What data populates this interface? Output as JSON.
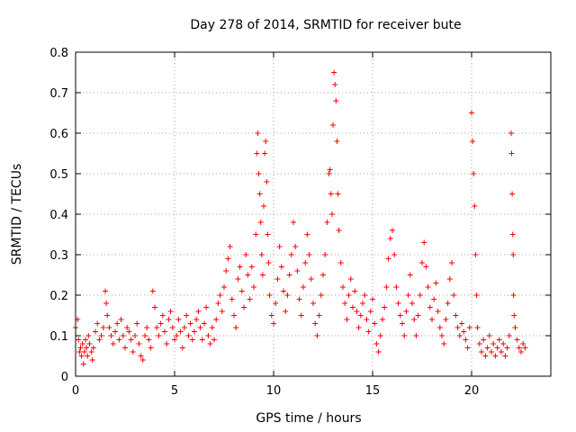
{
  "chart_data": {
    "type": "scatter",
    "title": "Day 278 of 2014, SRMTID for receiver bute",
    "xlabel": "GPS time / hours",
    "ylabel": "SRMTID / TECUs",
    "xlim": [
      0,
      24
    ],
    "ylim": [
      0,
      0.8
    ],
    "x_ticks": [
      "0",
      "5",
      "10",
      "15",
      "20"
    ],
    "y_ticks": [
      "0",
      "0.1",
      "0.2",
      "0.3",
      "0.4",
      "0.5",
      "0.6",
      "0.7",
      "0.8"
    ],
    "marker": "+",
    "color": "#ff0000",
    "grid": true,
    "series": [
      {
        "name": "SRMTID",
        "points": [
          [
            0.0,
            0.12
          ],
          [
            0.1,
            0.14
          ],
          [
            0.15,
            0.09
          ],
          [
            0.2,
            0.06
          ],
          [
            0.25,
            0.07
          ],
          [
            0.3,
            0.05
          ],
          [
            0.35,
            0.08
          ],
          [
            0.4,
            0.03
          ],
          [
            0.45,
            0.06
          ],
          [
            0.5,
            0.09
          ],
          [
            0.55,
            0.07
          ],
          [
            0.6,
            0.05
          ],
          [
            0.65,
            0.1
          ],
          [
            0.7,
            0.08
          ],
          [
            0.8,
            0.06
          ],
          [
            0.85,
            0.04
          ],
          [
            0.9,
            0.07
          ],
          [
            1.0,
            0.11
          ],
          [
            1.1,
            0.13
          ],
          [
            1.2,
            0.09
          ],
          [
            1.3,
            0.1
          ],
          [
            1.4,
            0.12
          ],
          [
            1.5,
            0.21
          ],
          [
            1.55,
            0.18
          ],
          [
            1.6,
            0.15
          ],
          [
            1.7,
            0.12
          ],
          [
            1.8,
            0.1
          ],
          [
            1.9,
            0.08
          ],
          [
            2.0,
            0.11
          ],
          [
            2.1,
            0.13
          ],
          [
            2.2,
            0.09
          ],
          [
            2.3,
            0.14
          ],
          [
            2.4,
            0.1
          ],
          [
            2.5,
            0.07
          ],
          [
            2.6,
            0.12
          ],
          [
            2.7,
            0.11
          ],
          [
            2.8,
            0.09
          ],
          [
            2.9,
            0.06
          ],
          [
            3.0,
            0.1
          ],
          [
            3.1,
            0.13
          ],
          [
            3.2,
            0.08
          ],
          [
            3.3,
            0.05
          ],
          [
            3.4,
            0.04
          ],
          [
            3.5,
            0.1
          ],
          [
            3.6,
            0.12
          ],
          [
            3.7,
            0.09
          ],
          [
            3.8,
            0.07
          ],
          [
            3.9,
            0.21
          ],
          [
            4.0,
            0.17
          ],
          [
            4.1,
            0.12
          ],
          [
            4.2,
            0.1
          ],
          [
            4.3,
            0.13
          ],
          [
            4.4,
            0.15
          ],
          [
            4.5,
            0.11
          ],
          [
            4.6,
            0.08
          ],
          [
            4.7,
            0.14
          ],
          [
            4.8,
            0.16
          ],
          [
            4.9,
            0.12
          ],
          [
            5.0,
            0.09
          ],
          [
            5.1,
            0.1
          ],
          [
            5.2,
            0.14
          ],
          [
            5.3,
            0.11
          ],
          [
            5.4,
            0.07
          ],
          [
            5.5,
            0.12
          ],
          [
            5.6,
            0.15
          ],
          [
            5.7,
            0.1
          ],
          [
            5.8,
            0.13
          ],
          [
            5.9,
            0.09
          ],
          [
            6.0,
            0.11
          ],
          [
            6.1,
            0.14
          ],
          [
            6.2,
            0.16
          ],
          [
            6.3,
            0.12
          ],
          [
            6.4,
            0.09
          ],
          [
            6.5,
            0.13
          ],
          [
            6.6,
            0.17
          ],
          [
            6.7,
            0.1
          ],
          [
            6.8,
            0.08
          ],
          [
            6.9,
            0.12
          ],
          [
            7.0,
            0.09
          ],
          [
            7.1,
            0.14
          ],
          [
            7.2,
            0.18
          ],
          [
            7.3,
            0.2
          ],
          [
            7.4,
            0.16
          ],
          [
            7.5,
            0.22
          ],
          [
            7.6,
            0.26
          ],
          [
            7.7,
            0.29
          ],
          [
            7.8,
            0.32
          ],
          [
            7.9,
            0.19
          ],
          [
            8.0,
            0.15
          ],
          [
            8.1,
            0.12
          ],
          [
            8.2,
            0.24
          ],
          [
            8.3,
            0.27
          ],
          [
            8.4,
            0.21
          ],
          [
            8.5,
            0.17
          ],
          [
            8.6,
            0.3
          ],
          [
            8.7,
            0.25
          ],
          [
            8.8,
            0.19
          ],
          [
            8.9,
            0.27
          ],
          [
            9.0,
            0.22
          ],
          [
            9.1,
            0.35
          ],
          [
            9.15,
            0.55
          ],
          [
            9.2,
            0.6
          ],
          [
            9.25,
            0.5
          ],
          [
            9.3,
            0.45
          ],
          [
            9.35,
            0.38
          ],
          [
            9.4,
            0.3
          ],
          [
            9.45,
            0.25
          ],
          [
            9.5,
            0.42
          ],
          [
            9.55,
            0.55
          ],
          [
            9.6,
            0.58
          ],
          [
            9.65,
            0.48
          ],
          [
            9.7,
            0.35
          ],
          [
            9.75,
            0.28
          ],
          [
            9.8,
            0.2
          ],
          [
            9.9,
            0.15
          ],
          [
            10.0,
            0.13
          ],
          [
            10.1,
            0.18
          ],
          [
            10.2,
            0.24
          ],
          [
            10.3,
            0.32
          ],
          [
            10.4,
            0.27
          ],
          [
            10.5,
            0.21
          ],
          [
            10.6,
            0.16
          ],
          [
            10.7,
            0.2
          ],
          [
            10.8,
            0.25
          ],
          [
            10.9,
            0.3
          ],
          [
            11.0,
            0.38
          ],
          [
            11.1,
            0.32
          ],
          [
            11.2,
            0.26
          ],
          [
            11.3,
            0.19
          ],
          [
            11.4,
            0.15
          ],
          [
            11.5,
            0.22
          ],
          [
            11.6,
            0.28
          ],
          [
            11.7,
            0.35
          ],
          [
            11.8,
            0.3
          ],
          [
            11.9,
            0.24
          ],
          [
            12.0,
            0.18
          ],
          [
            12.1,
            0.13
          ],
          [
            12.2,
            0.1
          ],
          [
            12.3,
            0.15
          ],
          [
            12.4,
            0.2
          ],
          [
            12.5,
            0.25
          ],
          [
            12.6,
            0.3
          ],
          [
            12.7,
            0.38
          ],
          [
            12.8,
            0.5
          ],
          [
            12.85,
            0.51
          ],
          [
            12.9,
            0.45
          ],
          [
            12.95,
            0.4
          ],
          [
            13.0,
            0.62
          ],
          [
            13.05,
            0.75
          ],
          [
            13.1,
            0.72
          ],
          [
            13.15,
            0.68
          ],
          [
            13.2,
            0.58
          ],
          [
            13.25,
            0.45
          ],
          [
            13.3,
            0.36
          ],
          [
            13.4,
            0.28
          ],
          [
            13.5,
            0.22
          ],
          [
            13.6,
            0.18
          ],
          [
            13.7,
            0.14
          ],
          [
            13.8,
            0.2
          ],
          [
            13.9,
            0.24
          ],
          [
            14.0,
            0.17
          ],
          [
            14.1,
            0.21
          ],
          [
            14.2,
            0.16
          ],
          [
            14.3,
            0.12
          ],
          [
            14.4,
            0.15
          ],
          [
            14.5,
            0.18
          ],
          [
            14.6,
            0.2
          ],
          [
            14.7,
            0.14
          ],
          [
            14.8,
            0.11
          ],
          [
            14.9,
            0.16
          ],
          [
            15.0,
            0.19
          ],
          [
            15.1,
            0.13
          ],
          [
            15.2,
            0.08
          ],
          [
            15.3,
            0.06
          ],
          [
            15.4,
            0.1
          ],
          [
            15.5,
            0.14
          ],
          [
            15.6,
            0.17
          ],
          [
            15.7,
            0.22
          ],
          [
            15.8,
            0.29
          ],
          [
            15.9,
            0.34
          ],
          [
            16.0,
            0.36
          ],
          [
            16.1,
            0.3
          ],
          [
            16.2,
            0.22
          ],
          [
            16.3,
            0.18
          ],
          [
            16.4,
            0.15
          ],
          [
            16.5,
            0.13
          ],
          [
            16.6,
            0.1
          ],
          [
            16.7,
            0.16
          ],
          [
            16.8,
            0.2
          ],
          [
            16.9,
            0.25
          ],
          [
            17.0,
            0.18
          ],
          [
            17.1,
            0.14
          ],
          [
            17.2,
            0.1
          ],
          [
            17.3,
            0.15
          ],
          [
            17.4,
            0.2
          ],
          [
            17.5,
            0.28
          ],
          [
            17.6,
            0.33
          ],
          [
            17.7,
            0.27
          ],
          [
            17.8,
            0.22
          ],
          [
            17.9,
            0.17
          ],
          [
            18.0,
            0.14
          ],
          [
            18.1,
            0.19
          ],
          [
            18.2,
            0.23
          ],
          [
            18.3,
            0.16
          ],
          [
            18.4,
            0.12
          ],
          [
            18.5,
            0.1
          ],
          [
            18.6,
            0.08
          ],
          [
            18.7,
            0.14
          ],
          [
            18.8,
            0.18
          ],
          [
            18.9,
            0.24
          ],
          [
            19.0,
            0.28
          ],
          [
            19.1,
            0.2
          ],
          [
            19.2,
            0.15
          ],
          [
            19.3,
            0.12
          ],
          [
            19.4,
            0.1
          ],
          [
            19.5,
            0.13
          ],
          [
            19.6,
            0.11
          ],
          [
            19.7,
            0.09
          ],
          [
            19.8,
            0.07
          ],
          [
            19.9,
            0.12
          ],
          [
            20.0,
            0.65
          ],
          [
            20.05,
            0.58
          ],
          [
            20.1,
            0.5
          ],
          [
            20.15,
            0.42
          ],
          [
            20.2,
            0.3
          ],
          [
            20.25,
            0.2
          ],
          [
            20.3,
            0.12
          ],
          [
            20.4,
            0.08
          ],
          [
            20.5,
            0.06
          ],
          [
            20.6,
            0.09
          ],
          [
            20.7,
            0.05
          ],
          [
            20.8,
            0.07
          ],
          [
            20.9,
            0.1
          ],
          [
            21.0,
            0.06
          ],
          [
            21.1,
            0.08
          ],
          [
            21.2,
            0.05
          ],
          [
            21.3,
            0.07
          ],
          [
            21.4,
            0.09
          ],
          [
            21.5,
            0.06
          ],
          [
            21.6,
            0.08
          ],
          [
            21.7,
            0.05
          ],
          [
            21.8,
            0.07
          ],
          [
            21.9,
            0.1
          ],
          [
            22.0,
            0.6
          ],
          [
            22.02,
            0.55
          ],
          [
            22.05,
            0.45
          ],
          [
            22.08,
            0.35
          ],
          [
            22.1,
            0.3
          ],
          [
            22.12,
            0.2
          ],
          [
            22.15,
            0.15
          ],
          [
            22.2,
            0.12
          ],
          [
            22.3,
            0.09
          ],
          [
            22.4,
            0.07
          ],
          [
            22.5,
            0.06
          ],
          [
            22.6,
            0.08
          ],
          [
            22.7,
            0.07
          ]
        ]
      }
    ]
  }
}
